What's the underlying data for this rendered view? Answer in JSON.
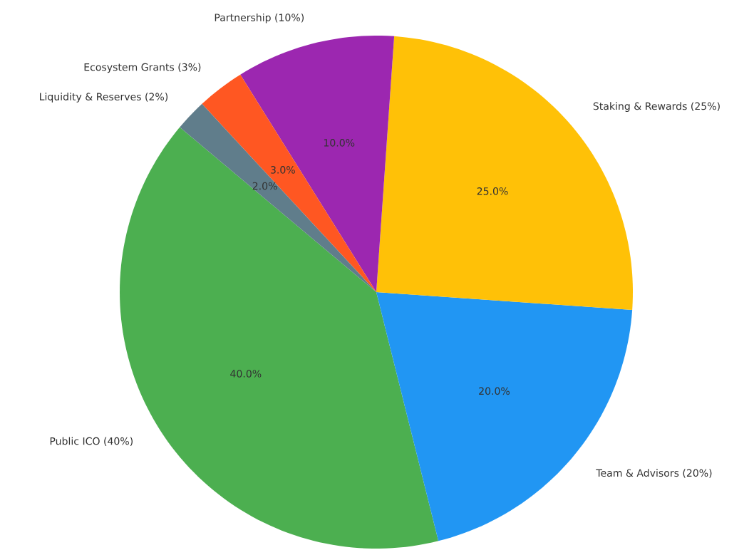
{
  "chart_data": {
    "type": "pie",
    "categories": [
      "Public ICO (40%)",
      "Team & Advisors (20%)",
      "Staking & Rewards (25%)",
      "Partnership (10%)",
      "Ecosystem Grants (3%)",
      "Liquidity & Reserves (2%)"
    ],
    "values": [
      40,
      20,
      25,
      10,
      3,
      2
    ],
    "colors": [
      "#4caf50",
      "#2196f3",
      "#ffc107",
      "#9c27b0",
      "#ff5722",
      "#607d8b"
    ],
    "value_labels": [
      "40.0%",
      "20.0%",
      "25.0%",
      "10.0%",
      "3.0%",
      "2.0%"
    ]
  }
}
